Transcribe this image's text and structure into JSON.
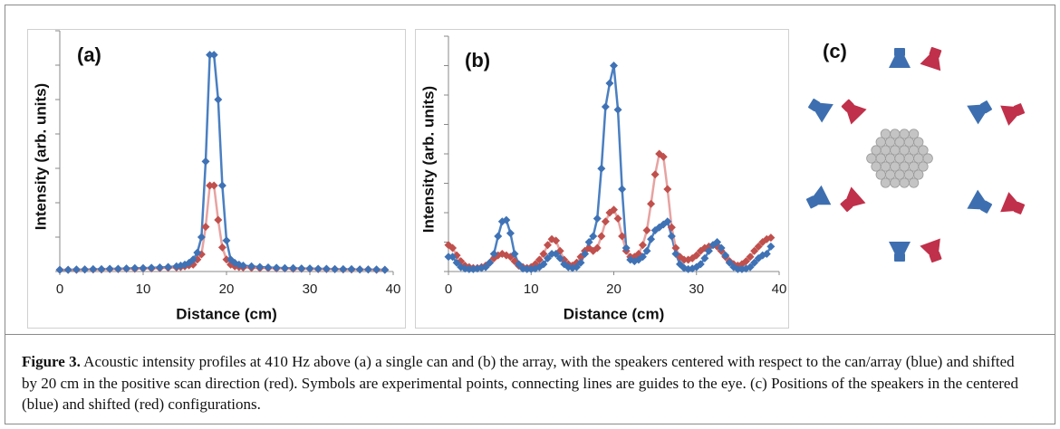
{
  "chart_data": [
    {
      "type": "line",
      "panel_label": "(a)",
      "xlabel": "Distance (cm)",
      "ylabel": "Intensity (arb. units)",
      "x": [
        0,
        1,
        2,
        3,
        4,
        5,
        6,
        7,
        8,
        9,
        10,
        11,
        12,
        13,
        14,
        14.5,
        15,
        15.5,
        16,
        16.5,
        17,
        17.5,
        18,
        18.5,
        19,
        19.5,
        20,
        20.5,
        21,
        21.5,
        22,
        23,
        24,
        25,
        26,
        27,
        28,
        29,
        30,
        31,
        32,
        33,
        34,
        35,
        36,
        37,
        38,
        39
      ],
      "series": [
        {
          "color": "#3f72b5",
          "line_color": "#4a7fc1",
          "values": [
            0.05,
            0.05,
            0.06,
            0.06,
            0.07,
            0.07,
            0.08,
            0.08,
            0.09,
            0.1,
            0.1,
            0.11,
            0.12,
            0.13,
            0.15,
            0.17,
            0.2,
            0.25,
            0.35,
            0.55,
            1.0,
            3.2,
            6.3,
            6.3,
            5.0,
            2.5,
            0.9,
            0.35,
            0.25,
            0.2,
            0.17,
            0.15,
            0.13,
            0.12,
            0.11,
            0.1,
            0.1,
            0.09,
            0.09,
            0.08,
            0.08,
            0.07,
            0.07,
            0.07,
            0.06,
            0.06,
            0.06,
            0.05
          ]
        },
        {
          "color": "#c0504d",
          "line_color": "#e6a3a1",
          "values": [
            0.05,
            0.05,
            0.05,
            0.06,
            0.06,
            0.06,
            0.07,
            0.07,
            0.08,
            0.08,
            0.09,
            0.09,
            0.1,
            0.11,
            0.12,
            0.13,
            0.15,
            0.18,
            0.2,
            0.35,
            0.5,
            1.3,
            2.5,
            2.5,
            1.5,
            0.7,
            0.35,
            0.2,
            0.15,
            0.13,
            0.12,
            0.11,
            0.1,
            0.1,
            0.09,
            0.09,
            0.08,
            0.08,
            0.08,
            0.07,
            0.07,
            0.07,
            0.06,
            0.06,
            0.06,
            0.06,
            0.05,
            0.05
          ]
        }
      ],
      "xlim": [
        0,
        40
      ],
      "xticks": [
        0,
        10,
        20,
        30,
        40
      ],
      "ylim": [
        0,
        7
      ],
      "yticks": [
        0,
        1,
        2,
        3,
        4,
        5,
        6,
        7
      ]
    },
    {
      "type": "line",
      "panel_label": "(b)",
      "xlabel": "Distance (cm)",
      "ylabel": "Intensity (arb. units)",
      "x": [
        0,
        0.5,
        1,
        1.5,
        2,
        2.5,
        3,
        3.5,
        4,
        4.5,
        5,
        5.5,
        6,
        6.5,
        7,
        7.5,
        8,
        8.5,
        9,
        9.5,
        10,
        10.5,
        11,
        11.5,
        12,
        12.5,
        13,
        13.5,
        14,
        14.5,
        15,
        15.5,
        16,
        16.5,
        17,
        17.5,
        18,
        18.5,
        19,
        19.5,
        20,
        20.5,
        21,
        21.5,
        22,
        22.5,
        23,
        23.5,
        24,
        24.5,
        25,
        25.5,
        26,
        26.5,
        27,
        27.5,
        28,
        28.5,
        29,
        29.5,
        30,
        30.5,
        31,
        31.5,
        32,
        32.5,
        33,
        33.5,
        34,
        34.5,
        35,
        35.5,
        36,
        36.5,
        37,
        37.5,
        38,
        38.5,
        39
      ],
      "series": [
        {
          "color": "#3f72b5",
          "line_color": "#4a7fc1",
          "values": [
            0.5,
            0.5,
            0.3,
            0.15,
            0.1,
            0.08,
            0.08,
            0.1,
            0.12,
            0.15,
            0.3,
            0.6,
            1.2,
            1.7,
            1.75,
            1.3,
            0.6,
            0.25,
            0.1,
            0.08,
            0.08,
            0.1,
            0.15,
            0.25,
            0.45,
            0.6,
            0.6,
            0.45,
            0.25,
            0.15,
            0.12,
            0.15,
            0.3,
            0.6,
            1.0,
            1.2,
            1.8,
            3.5,
            5.6,
            6.4,
            7.0,
            5.5,
            2.8,
            0.8,
            0.4,
            0.35,
            0.4,
            0.5,
            0.7,
            1.1,
            1.4,
            1.5,
            1.6,
            1.7,
            1.2,
            0.6,
            0.25,
            0.12,
            0.08,
            0.1,
            0.15,
            0.25,
            0.45,
            0.7,
            0.9,
            1.0,
            0.8,
            0.55,
            0.3,
            0.15,
            0.08,
            0.08,
            0.1,
            0.15,
            0.3,
            0.45,
            0.55,
            0.6,
            0.85
          ]
        },
        {
          "color": "#c0504d",
          "line_color": "#e6a3a1",
          "values": [
            0.9,
            0.8,
            0.55,
            0.35,
            0.2,
            0.15,
            0.12,
            0.12,
            0.15,
            0.2,
            0.3,
            0.45,
            0.55,
            0.6,
            0.55,
            0.5,
            0.35,
            0.2,
            0.15,
            0.12,
            0.15,
            0.25,
            0.4,
            0.6,
            0.9,
            1.1,
            1.05,
            0.7,
            0.4,
            0.25,
            0.2,
            0.3,
            0.5,
            0.7,
            0.8,
            0.7,
            0.8,
            1.2,
            1.7,
            2.0,
            2.1,
            1.8,
            1.2,
            0.7,
            0.5,
            0.5,
            0.6,
            0.9,
            1.4,
            2.3,
            3.3,
            4.0,
            3.9,
            2.8,
            1.5,
            0.8,
            0.5,
            0.4,
            0.4,
            0.45,
            0.55,
            0.7,
            0.8,
            0.85,
            0.9,
            0.85,
            0.7,
            0.5,
            0.35,
            0.25,
            0.2,
            0.25,
            0.35,
            0.5,
            0.7,
            0.85,
            1.0,
            1.1,
            1.15
          ]
        }
      ],
      "xlim": [
        0,
        40
      ],
      "xticks": [
        0,
        10,
        20,
        30,
        40
      ],
      "ylim": [
        0,
        8
      ],
      "yticks": [
        0,
        1,
        2,
        3,
        4,
        5,
        6,
        7,
        8
      ]
    }
  ],
  "panel_c": {
    "label": "(c)"
  },
  "caption": {
    "label": "Figure 3.",
    "text": "Acoustic intensity profiles at 410 Hz above (a) a single can and (b) the array, with the speakers centered with respect to the can/array (blue) and shifted by 20 cm in the positive scan direction (red). Symbols are experimental points, connecting lines are guides to the eye. (c) Positions of the speakers in the centered (blue) and shifted (red) configurations."
  }
}
